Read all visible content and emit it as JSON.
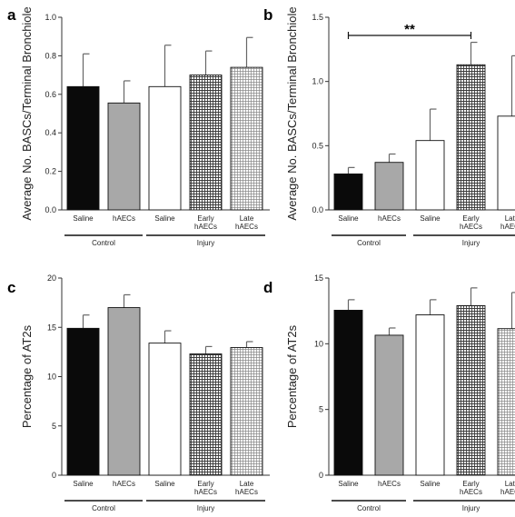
{
  "chart_data": [
    {
      "panel_label": "a",
      "type": "bar",
      "ylabel": "Average No. BASCs/Terminal Bronchiole",
      "ylim": [
        0,
        1.0
      ],
      "yticks": [
        "0.0",
        "0.2",
        "0.4",
        "0.6",
        "0.8",
        "1.0"
      ],
      "categories": [
        [
          "Saline"
        ],
        [
          "hAECs"
        ],
        [
          "Saline"
        ],
        [
          "Early",
          "hAECs"
        ],
        [
          "Late",
          "hAECs"
        ]
      ],
      "groups": [
        {
          "label": "Control",
          "span": [
            0,
            1
          ]
        },
        {
          "label": "Injury",
          "span": [
            2,
            4
          ]
        }
      ],
      "values": [
        0.64,
        0.555,
        0.64,
        0.7,
        0.74
      ],
      "errors": [
        0.17,
        0.115,
        0.215,
        0.125,
        0.155
      ],
      "fills": [
        "black",
        "gray",
        "white",
        "crosshatch",
        "finehatch"
      ],
      "significance": []
    },
    {
      "panel_label": "b",
      "type": "bar",
      "ylabel": "Average No. BASCs/Terminal Bronchiole",
      "ylim": [
        0,
        1.5
      ],
      "yticks": [
        "0.0",
        "0.5",
        "1.0",
        "1.5"
      ],
      "categories": [
        [
          "Saline"
        ],
        [
          "hAECs"
        ],
        [
          "Saline"
        ],
        [
          "Early",
          "hAECs"
        ],
        [
          "Late",
          "hAECs"
        ]
      ],
      "groups": [
        {
          "label": "Control",
          "span": [
            0,
            1
          ]
        },
        {
          "label": "Injury",
          "span": [
            2,
            4
          ]
        }
      ],
      "values": [
        0.28,
        0.37,
        0.54,
        1.13,
        0.73
      ],
      "errors": [
        0.05,
        0.065,
        0.245,
        0.175,
        0.47
      ],
      "fills": [
        "black",
        "gray",
        "white",
        "crosshatch",
        "white"
      ],
      "significance": [
        {
          "label": "**",
          "from": 0,
          "to": 3
        }
      ]
    },
    {
      "panel_label": "c",
      "type": "bar",
      "ylabel": "Percentage of AT2s",
      "ylim": [
        0,
        20
      ],
      "yticks": [
        "0",
        "5",
        "10",
        "15",
        "20"
      ],
      "categories": [
        [
          "Saline"
        ],
        [
          "hAECs"
        ],
        [
          "Saline"
        ],
        [
          "Early",
          "hAECs"
        ],
        [
          "Late",
          "hAECs"
        ]
      ],
      "groups": [
        {
          "label": "Control",
          "span": [
            0,
            1
          ]
        },
        {
          "label": "Injury",
          "span": [
            2,
            4
          ]
        }
      ],
      "values": [
        14.9,
        17.0,
        13.4,
        12.3,
        12.95
      ],
      "errors": [
        1.35,
        1.3,
        1.25,
        0.75,
        0.6
      ],
      "fills": [
        "black",
        "gray",
        "white",
        "crosshatch",
        "finehatch"
      ],
      "significance": []
    },
    {
      "panel_label": "d",
      "type": "bar",
      "ylabel": "Percentage of AT2s",
      "ylim": [
        0,
        15
      ],
      "yticks": [
        "0",
        "5",
        "10",
        "15"
      ],
      "categories": [
        [
          "Saline"
        ],
        [
          "hAECs"
        ],
        [
          "Saline"
        ],
        [
          "Early",
          "hAECs"
        ],
        [
          "Late",
          "hAECs"
        ]
      ],
      "groups": [
        {
          "label": "Control",
          "span": [
            0,
            1
          ]
        },
        {
          "label": "Injury",
          "span": [
            2,
            4
          ]
        }
      ],
      "values": [
        12.55,
        10.65,
        12.2,
        12.9,
        11.15
      ],
      "errors": [
        0.8,
        0.55,
        1.15,
        1.35,
        2.75
      ],
      "fills": [
        "black",
        "gray",
        "white",
        "crosshatch",
        "finehatch"
      ],
      "significance": []
    }
  ],
  "colors": {
    "black": "#0a0a0a",
    "gray": "#a8a8a8",
    "white": "#ffffff",
    "hatch": "#555555",
    "axis": "#333333",
    "error": "#666666"
  }
}
